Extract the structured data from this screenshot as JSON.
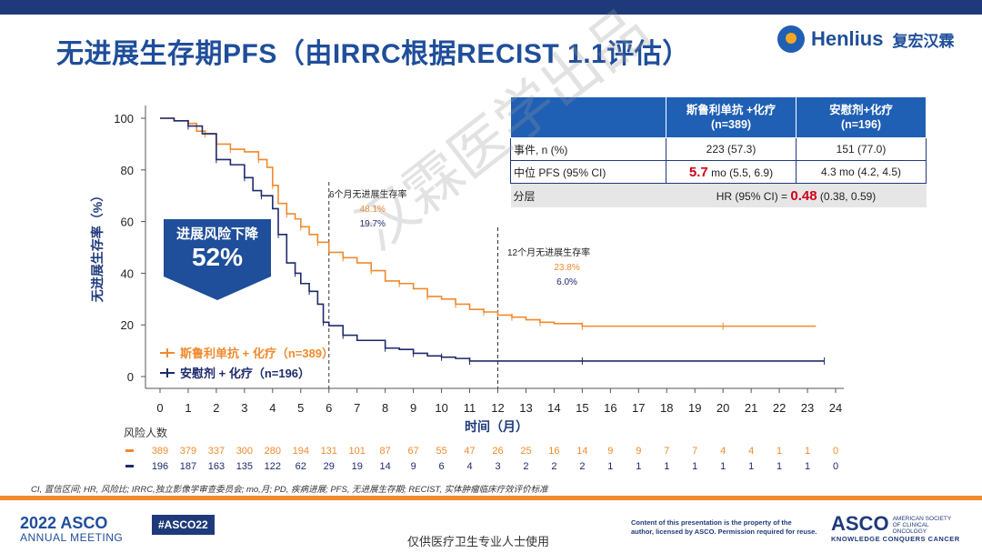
{
  "title": "无进展生存期PFS（由IRRC根据RECIST 1.1评估）",
  "logo": {
    "en": "Henlius",
    "cn": "复宏汉霖"
  },
  "chart_data": {
    "type": "line",
    "title": "无进展生存期PFS（由IRRC根据RECIST 1.1评估）",
    "xlabel": "时间（月）",
    "ylabel": "无进展生存率（%）",
    "x_ticks": [
      0,
      1,
      2,
      3,
      4,
      5,
      6,
      7,
      8,
      9,
      10,
      11,
      12,
      13,
      14,
      15,
      16,
      17,
      18,
      19,
      20,
      21,
      22,
      23,
      24
    ],
    "y_ticks": [
      0,
      20,
      40,
      60,
      80,
      100
    ],
    "xlim": [
      0,
      24
    ],
    "ylim": [
      0,
      100
    ],
    "series": [
      {
        "name": "斯鲁利单抗 + 化疗（n=389）",
        "color": "#f08a2e",
        "points": [
          [
            0,
            100
          ],
          [
            0.5,
            99
          ],
          [
            1,
            98
          ],
          [
            1.3,
            95
          ],
          [
            1.6,
            94
          ],
          [
            2,
            90
          ],
          [
            2.5,
            88
          ],
          [
            3,
            87
          ],
          [
            3.5,
            84
          ],
          [
            3.8,
            81
          ],
          [
            4,
            74
          ],
          [
            4.2,
            67
          ],
          [
            4.5,
            63
          ],
          [
            4.8,
            61
          ],
          [
            5,
            58
          ],
          [
            5.3,
            55
          ],
          [
            5.6,
            52
          ],
          [
            6,
            48.1
          ],
          [
            6.5,
            46
          ],
          [
            7,
            44
          ],
          [
            7.5,
            41
          ],
          [
            8,
            37
          ],
          [
            8.5,
            36
          ],
          [
            9,
            34
          ],
          [
            9.5,
            31
          ],
          [
            10,
            30
          ],
          [
            10.5,
            28
          ],
          [
            11,
            26
          ],
          [
            11.5,
            25
          ],
          [
            12,
            23.8
          ],
          [
            12.5,
            23
          ],
          [
            13,
            22
          ],
          [
            13.5,
            21
          ],
          [
            14,
            20.5
          ],
          [
            15,
            19.5
          ],
          [
            17,
            19.5
          ],
          [
            20,
            19.5
          ],
          [
            23.3,
            19.5
          ]
        ]
      },
      {
        "name": "安慰剂 + 化疗（n=196）",
        "color": "#1f2a6b",
        "points": [
          [
            0,
            100
          ],
          [
            0.5,
            99
          ],
          [
            1,
            97
          ],
          [
            1.5,
            94
          ],
          [
            2,
            84
          ],
          [
            2.5,
            82
          ],
          [
            3,
            77
          ],
          [
            3.3,
            72
          ],
          [
            3.6,
            70
          ],
          [
            4,
            65
          ],
          [
            4.2,
            55
          ],
          [
            4.5,
            44
          ],
          [
            4.8,
            40
          ],
          [
            5,
            36
          ],
          [
            5.3,
            33
          ],
          [
            5.6,
            28
          ],
          [
            5.8,
            21
          ],
          [
            6,
            19.7
          ],
          [
            6.5,
            16
          ],
          [
            7,
            14
          ],
          [
            8,
            11
          ],
          [
            8.5,
            10.5
          ],
          [
            9,
            9
          ],
          [
            9.5,
            8
          ],
          [
            10,
            7.5
          ],
          [
            10.5,
            7
          ],
          [
            11,
            6
          ],
          [
            12,
            6
          ],
          [
            15,
            6
          ],
          [
            20,
            6
          ],
          [
            23.6,
            6
          ]
        ]
      }
    ],
    "vlines": [
      6,
      12
    ],
    "annotations": [
      {
        "label": "6个月无进展生存率",
        "orange": "48.1%",
        "blue": "19.7%"
      },
      {
        "label": "12个月无进展生存率",
        "orange": "23.8%",
        "blue": "6.0%"
      }
    ],
    "hr_box": {
      "line1": "进展风险下降",
      "line2": "52%"
    },
    "risk_table": {
      "label": "风险人数",
      "orange": [
        "389",
        "379",
        "337",
        "300",
        "280",
        "194",
        "131",
        "101",
        "87",
        "67",
        "55",
        "47",
        "26",
        "25",
        "16",
        "14",
        "9",
        "9",
        "7",
        "7",
        "4",
        "4",
        "1",
        "1",
        "0"
      ],
      "blue": [
        "196",
        "187",
        "163",
        "135",
        "122",
        "62",
        "29",
        "19",
        "14",
        "9",
        "6",
        "4",
        "3",
        "2",
        "2",
        "2",
        "1",
        "1",
        "1",
        "1",
        "1",
        "1",
        "1",
        "1",
        "0"
      ]
    }
  },
  "table": {
    "headers": [
      "",
      "斯鲁利单抗 +化疗\n(n=389)",
      "安慰剂+化疗\n(n=196)"
    ],
    "rows": [
      {
        "label": "事件, n (%)",
        "a": "223 (57.3)",
        "b": "151 (77.0)"
      },
      {
        "label": "中位 PFS (95% CI)",
        "a_big": "5.7",
        "a_rest": " mo (5.5, 6.9)",
        "b": "4.3 mo (4.2, 4.5)"
      }
    ],
    "strat": {
      "label": "分层",
      "hr_prefix": "HR (95% CI) = ",
      "hr_value": "0.48",
      "hr_ci": " (0.38, 0.59)"
    }
  },
  "footnote": "CI, 置信区间; HR, 风险比; IRRC,独立影像学审查委员会; mo,月; PD, 疾病进展; PFS, 无进展生存期; RECIST, 实体肿瘤临床疗效评价标准",
  "footer": {
    "meeting_year": "2022",
    "meeting_name": "ASCO",
    "meeting_sub": "ANNUAL MEETING",
    "hashtag": "#ASCO22",
    "only": "仅供医疗卫生专业人士使用",
    "copyright1": "Content of this presentation is the property of the",
    "copyright2": "author, licensed by ASCO. Permission required for reuse.",
    "asco": "ASCO",
    "asco_small": "AMERICAN SOCIETY OF CLINICAL ONCOLOGY",
    "asco_tag": "KNOWLEDGE CONQUERS CANCER"
  },
  "watermark": "汉霖医学出品",
  "colors": {
    "orange": "#f08a2e",
    "navy": "#1f2a6b",
    "brand": "#1f4e9a",
    "red": "#d0021b"
  }
}
